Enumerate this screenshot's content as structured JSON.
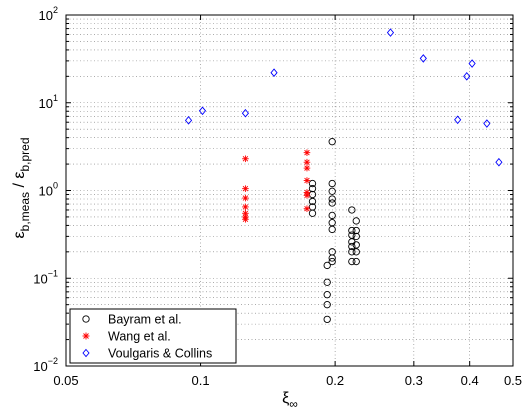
{
  "chart_data": {
    "type": "scatter",
    "xscale": "log",
    "yscale": "log",
    "xlim": [
      0.05,
      0.5
    ],
    "ylim": [
      0.01,
      100
    ],
    "grid": true,
    "legend_position": "bottom-left",
    "xlabel": {
      "base": "ξ",
      "sub": "∞"
    },
    "ylabel": {
      "num_base": "ε",
      "num_sub": "b,meas",
      "sep": " / ",
      "den_base": "ε",
      "den_sub": "b,pred"
    },
    "xticks": [
      {
        "value": 0.05,
        "label": "0.05"
      },
      {
        "value": 0.1,
        "label": "0.1"
      },
      {
        "value": 0.2,
        "label": "0.2"
      },
      {
        "value": 0.3,
        "label": "0.3"
      },
      {
        "value": 0.4,
        "label": "0.4"
      },
      {
        "value": 0.5,
        "label": "0.5"
      }
    ],
    "yticks": [
      {
        "value": 0.01,
        "base": "10",
        "exp": "−2"
      },
      {
        "value": 0.1,
        "base": "10",
        "exp": "−1"
      },
      {
        "value": 1,
        "base": "10",
        "exp": "0"
      },
      {
        "value": 10,
        "base": "10",
        "exp": "1"
      },
      {
        "value": 100,
        "base": "10",
        "exp": "2"
      }
    ],
    "series": [
      {
        "name": "Bayram et al.",
        "marker": "circle",
        "color": "#000000",
        "points": [
          [
            0.178,
            1.2
          ],
          [
            0.178,
            1.05
          ],
          [
            0.178,
            0.9
          ],
          [
            0.178,
            0.75
          ],
          [
            0.178,
            0.65
          ],
          [
            0.178,
            0.55
          ],
          [
            0.192,
            0.14
          ],
          [
            0.192,
            0.09
          ],
          [
            0.192,
            0.065
          ],
          [
            0.192,
            0.05
          ],
          [
            0.192,
            0.034
          ],
          [
            0.197,
            3.6
          ],
          [
            0.197,
            1.2
          ],
          [
            0.197,
            0.98
          ],
          [
            0.197,
            0.8
          ],
          [
            0.197,
            0.72
          ],
          [
            0.197,
            0.52
          ],
          [
            0.197,
            0.43
          ],
          [
            0.197,
            0.36
          ],
          [
            0.197,
            0.2
          ],
          [
            0.197,
            0.17
          ],
          [
            0.197,
            0.155
          ],
          [
            0.218,
            0.6
          ],
          [
            0.218,
            0.35
          ],
          [
            0.218,
            0.31
          ],
          [
            0.218,
            0.26
          ],
          [
            0.218,
            0.23
          ],
          [
            0.218,
            0.2
          ],
          [
            0.218,
            0.155
          ],
          [
            0.223,
            0.45
          ],
          [
            0.223,
            0.35
          ],
          [
            0.223,
            0.3
          ],
          [
            0.223,
            0.24
          ],
          [
            0.223,
            0.2
          ],
          [
            0.223,
            0.155
          ]
        ]
      },
      {
        "name": "Wang et al.",
        "marker": "asterisk",
        "color": "#ff0000",
        "points": [
          [
            0.126,
            2.3
          ],
          [
            0.126,
            1.05
          ],
          [
            0.126,
            0.82
          ],
          [
            0.126,
            0.65
          ],
          [
            0.126,
            0.55
          ],
          [
            0.126,
            0.5
          ],
          [
            0.126,
            0.47
          ],
          [
            0.173,
            2.7
          ],
          [
            0.173,
            2.1
          ],
          [
            0.173,
            1.8
          ],
          [
            0.173,
            1.3
          ],
          [
            0.173,
            0.95
          ],
          [
            0.173,
            0.88
          ],
          [
            0.173,
            0.62
          ]
        ]
      },
      {
        "name": "Voulgaris & Collins",
        "marker": "diamond",
        "color": "#0000ff",
        "points": [
          [
            0.094,
            6.3
          ],
          [
            0.101,
            8.1
          ],
          [
            0.126,
            7.6
          ],
          [
            0.146,
            22
          ],
          [
            0.266,
            63
          ],
          [
            0.315,
            32
          ],
          [
            0.376,
            6.4
          ],
          [
            0.394,
            20
          ],
          [
            0.405,
            28
          ],
          [
            0.437,
            5.8
          ],
          [
            0.465,
            2.1
          ]
        ]
      }
    ]
  }
}
